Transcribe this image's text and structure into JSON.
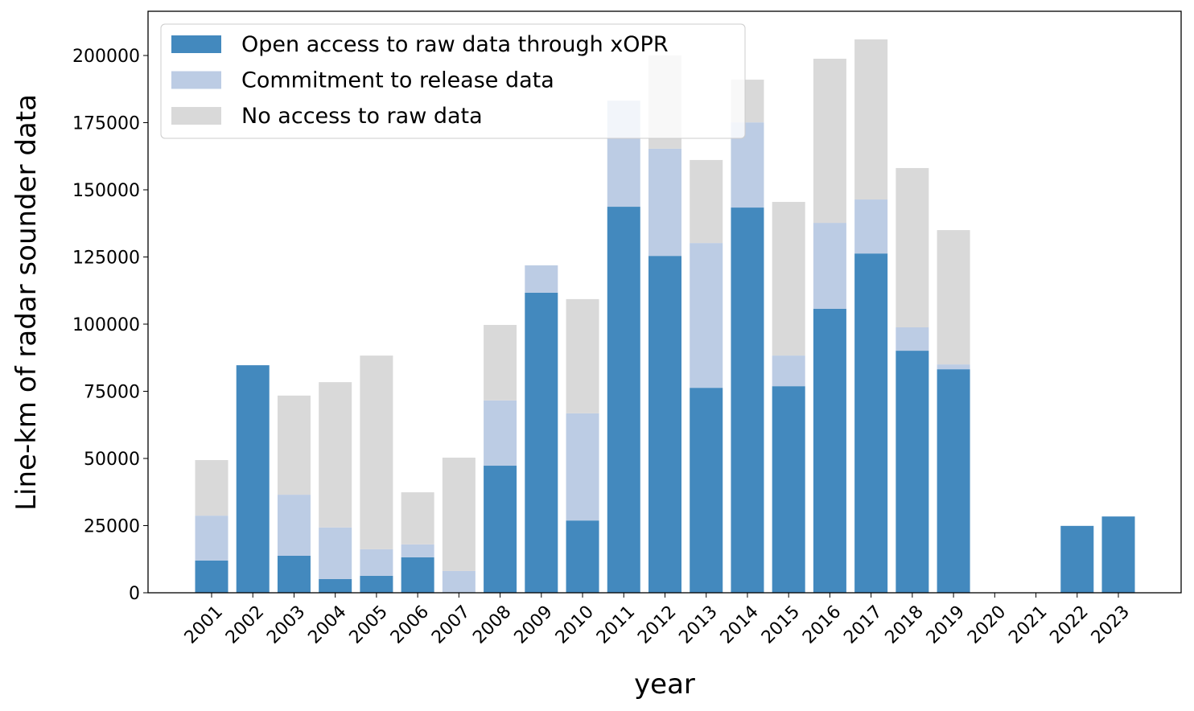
{
  "chart_data": {
    "type": "bar",
    "stacked": true,
    "title": "",
    "xlabel": "year",
    "ylabel": "Line-km of radar sounder data",
    "ylim": [
      0,
      215000
    ],
    "yticks": [
      0,
      25000,
      50000,
      75000,
      100000,
      125000,
      150000,
      175000,
      200000
    ],
    "grid": false,
    "legend_position": "top-left",
    "categories": [
      "2001",
      "2002",
      "2003",
      "2004",
      "2005",
      "2006",
      "2007",
      "2008",
      "2009",
      "2010",
      "2011",
      "2012",
      "2013",
      "2014",
      "2015",
      "2016",
      "2017",
      "2018",
      "2019",
      "2020",
      "2021",
      "2022",
      "2023"
    ],
    "series": [
      {
        "name": "Open access to raw data through xOPR",
        "color": "#4389be",
        "values": [
          12000,
          84700,
          13800,
          5100,
          6300,
          13200,
          0,
          47300,
          111700,
          26900,
          143700,
          125400,
          76300,
          143400,
          76900,
          105700,
          126300,
          90100,
          83200,
          0,
          0,
          24900,
          28400
        ]
      },
      {
        "name": "Commitment to release data",
        "color": "#bccce4",
        "values": [
          16700,
          0,
          22700,
          19200,
          9900,
          4800,
          8100,
          24300,
          10200,
          39900,
          39500,
          39900,
          53900,
          31700,
          11400,
          32000,
          20100,
          8700,
          1800,
          0,
          0,
          0,
          0
        ]
      },
      {
        "name": "No access to raw data",
        "color": "#d9d9d9",
        "values": [
          20700,
          0,
          36900,
          54100,
          72100,
          19400,
          42200,
          28100,
          0,
          42500,
          0,
          34700,
          30900,
          15900,
          57200,
          61100,
          59600,
          59300,
          50000,
          0,
          0,
          0,
          0
        ]
      }
    ]
  }
}
